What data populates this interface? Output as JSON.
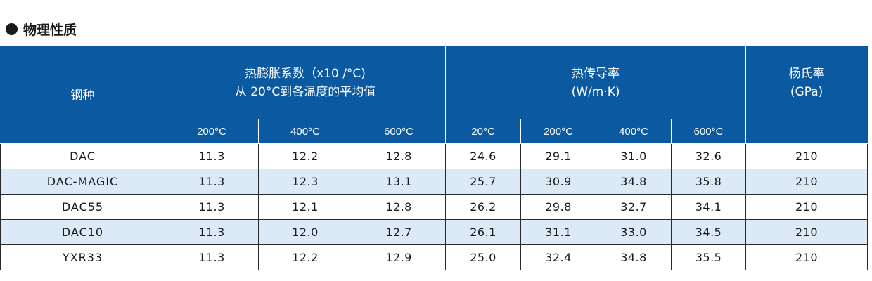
{
  "section": {
    "title": "物理性质"
  },
  "table": {
    "header": {
      "steel": "钢种",
      "thermal_expansion": {
        "line1": "热膨胀系数（x10  /°C)",
        "line2": "从 20°C到各温度的平均值"
      },
      "thermal_conductivity": {
        "line1": "热传导率",
        "line2": "(W/m·K)"
      },
      "youngs_modulus": {
        "line1": "杨氏率",
        "line2": "(GPa)"
      }
    },
    "subheaders": {
      "expansion": [
        "200°C",
        "400°C",
        "600°C"
      ],
      "conductivity": [
        "20°C",
        "200°C",
        "400°C",
        "600°C"
      ]
    },
    "rows": [
      {
        "steel": "DAC",
        "exp": [
          "11.3",
          "12.2",
          "12.8"
        ],
        "cond": [
          "24.6",
          "29.1",
          "31.0",
          "32.6"
        ],
        "modulus": "210"
      },
      {
        "steel": "DAC-MAGIC",
        "exp": [
          "11.3",
          "12.3",
          "13.1"
        ],
        "cond": [
          "25.7",
          "30.9",
          "34.8",
          "35.8"
        ],
        "modulus": "210"
      },
      {
        "steel": "DAC55",
        "exp": [
          "11.3",
          "12.1",
          "12.8"
        ],
        "cond": [
          "26.2",
          "29.8",
          "32.7",
          "34.1"
        ],
        "modulus": "210"
      },
      {
        "steel": "DAC10",
        "exp": [
          "11.3",
          "12.0",
          "12.7"
        ],
        "cond": [
          "26.1",
          "31.1",
          "33.0",
          "34.5"
        ],
        "modulus": "210"
      },
      {
        "steel": "YXR33",
        "exp": [
          "11.3",
          "12.2",
          "12.9"
        ],
        "cond": [
          "25.0",
          "32.4",
          "34.8",
          "35.5"
        ],
        "modulus": "210"
      }
    ]
  },
  "colors": {
    "header_bg": "#0b5aa1",
    "alt_row_bg": "#dce9f7"
  }
}
